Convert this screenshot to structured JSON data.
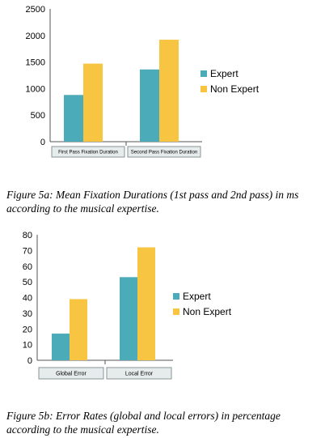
{
  "chart_data": [
    {
      "type": "bar",
      "categories": [
        "First Pass Fixation Duration",
        "Second Pass Fixation Duration"
      ],
      "series": [
        {
          "name": "Expert",
          "values": [
            880,
            1360
          ],
          "color": "#4cabb8"
        },
        {
          "name": "Non Expert",
          "values": [
            1470,
            1920
          ],
          "color": "#f8c543"
        }
      ],
      "ylim": [
        0,
        2500
      ],
      "yticks": [
        0,
        500,
        1000,
        1500,
        2000,
        2500
      ],
      "grid": false,
      "legend": "right"
    },
    {
      "type": "bar",
      "categories": [
        "Global Error",
        "Local Error"
      ],
      "series": [
        {
          "name": "Expert",
          "values": [
            17,
            53
          ],
          "color": "#4cabb8"
        },
        {
          "name": "Non Expert",
          "values": [
            39,
            72
          ],
          "color": "#f8c543"
        }
      ],
      "ylim": [
        0,
        80
      ],
      "yticks": [
        0,
        10,
        20,
        30,
        40,
        50,
        60,
        70,
        80
      ],
      "grid": false,
      "legend": "right"
    }
  ],
  "captions": {
    "a": "Figure 5a: Mean Fixation Durations (1st pass and 2nd pass) in ms according to the musical expertise.",
    "b": "Figure 5b: Error Rates (global and local errors) in percentage according to the musical expertise."
  }
}
